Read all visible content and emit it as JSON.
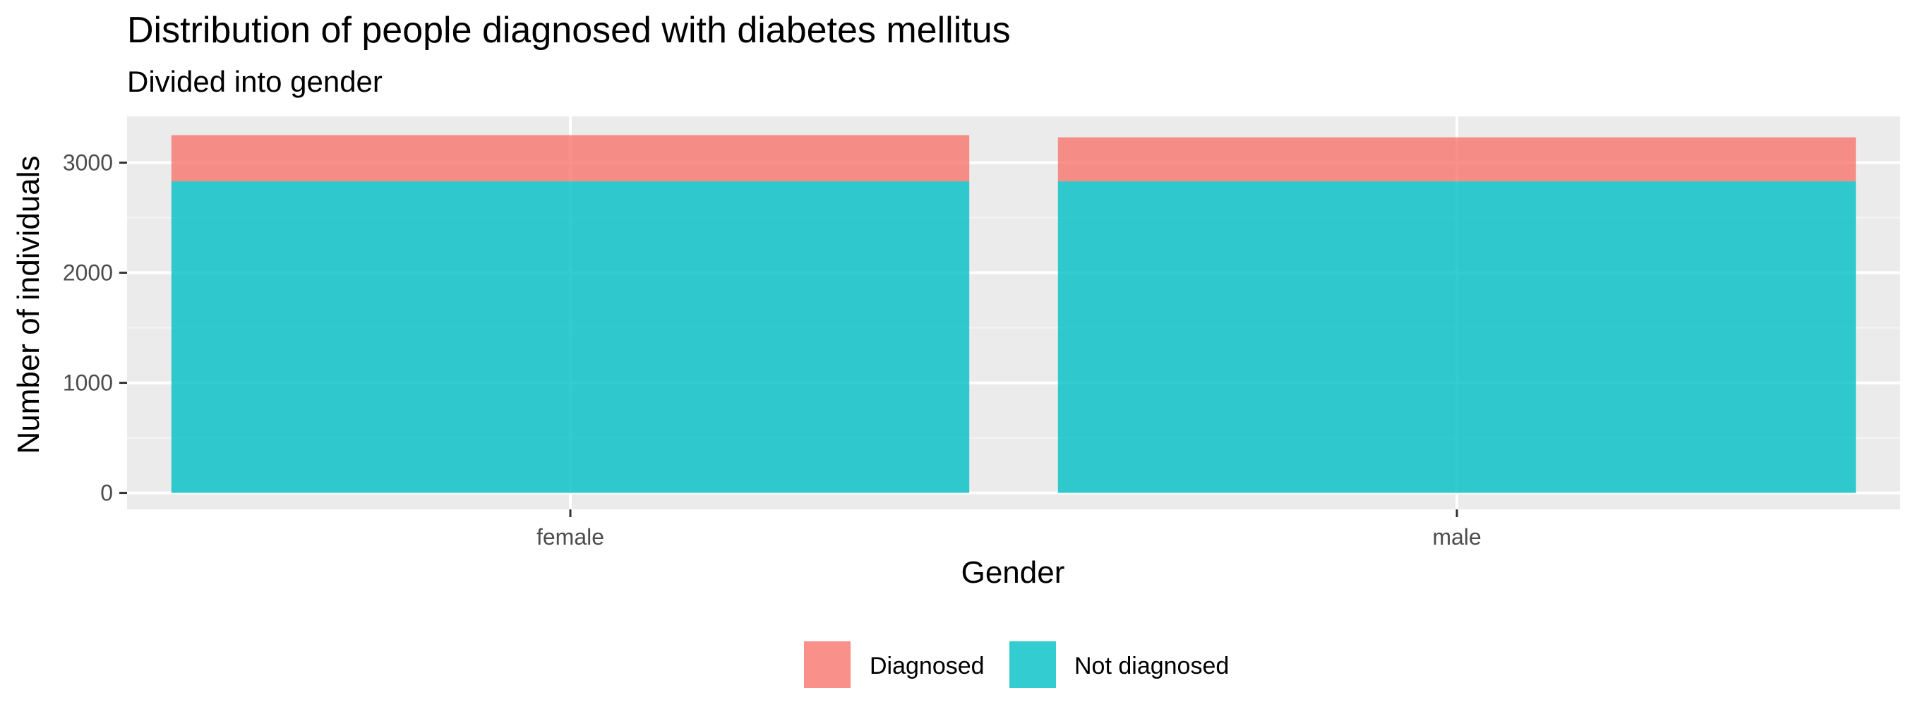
{
  "chart_data": {
    "type": "bar",
    "stacked": true,
    "title": "Distribution of people diagnosed with diabetes mellitus",
    "subtitle": "Divided into gender",
    "xlabel": "Gender",
    "ylabel": "Number of individuals",
    "categories": [
      "female",
      "male"
    ],
    "series": [
      {
        "name": "Not diagnosed",
        "color": "#00BFC4",
        "values": [
          2830,
          2830
        ]
      },
      {
        "name": "Diagnosed",
        "color": "#F8766D",
        "values": [
          420,
          400
        ]
      }
    ],
    "ylim": [
      -150,
      3420
    ],
    "yticks": [
      0,
      1000,
      2000,
      3000
    ],
    "ytick_labels": [
      "0",
      "1000",
      "2000",
      "3000"
    ],
    "grid": true,
    "legend": {
      "position": "bottom",
      "entries": [
        "Diagnosed",
        "Not diagnosed"
      ]
    },
    "colors": {
      "panel_background": "#EBEBEB",
      "grid_major": "#FFFFFF",
      "grid_minor": "#F5F5F5"
    }
  }
}
